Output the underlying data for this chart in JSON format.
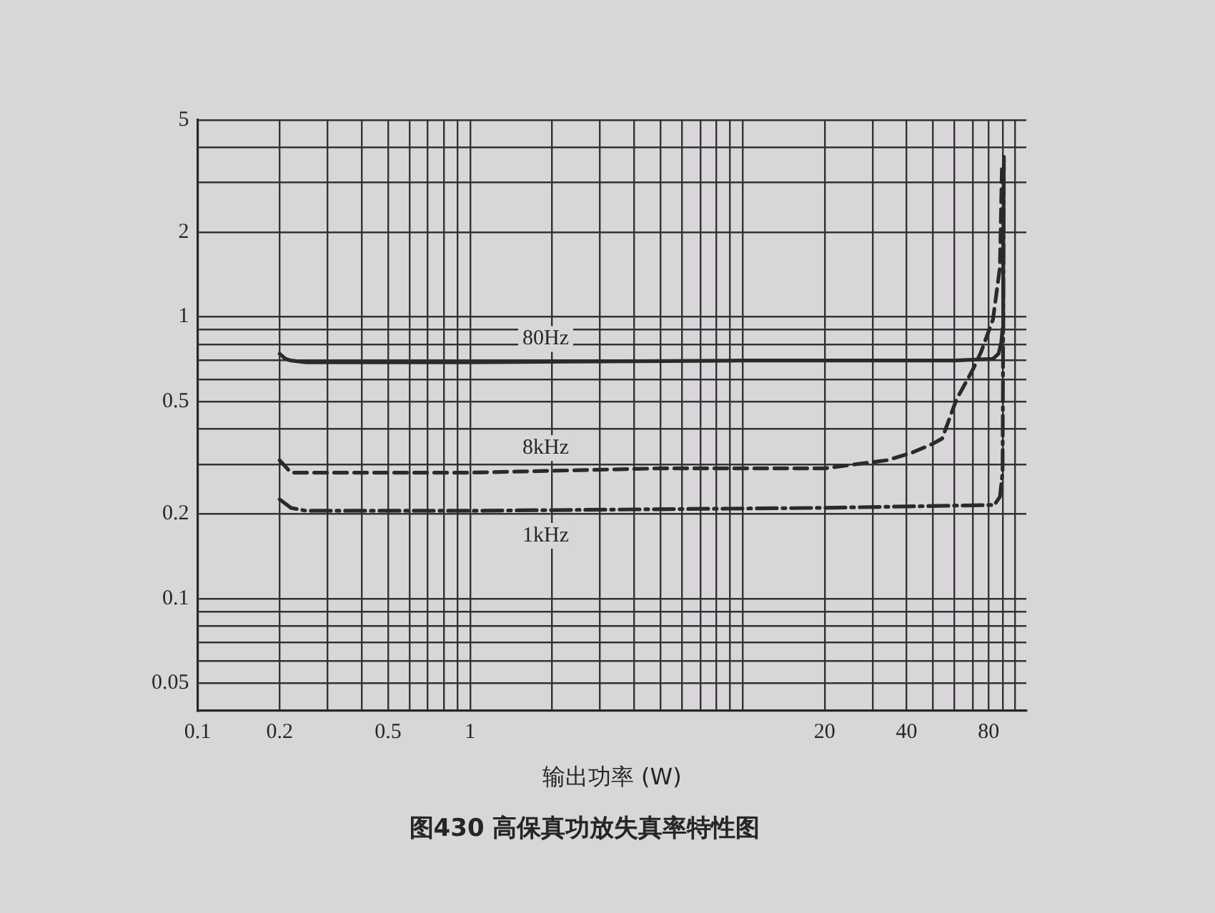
{
  "chart_data": {
    "type": "line",
    "title": "图430 高保真功放失真率特性图",
    "xlabel": "输出功率 (W)",
    "log": "xy",
    "xlim": [
      0.1,
      110
    ],
    "xticks": [
      0.1,
      0.2,
      {
        "value": 0.3,
        "label": null
      },
      {
        "value": 0.4,
        "label": null
      },
      0.5,
      {
        "value": 0.6,
        "label": null
      },
      {
        "value": 0.7,
        "label": null
      },
      {
        "value": 0.8,
        "label": null
      },
      {
        "value": 0.9,
        "label": null
      },
      1,
      {
        "value": 2,
        "label": null
      },
      {
        "value": 3,
        "label": null
      },
      {
        "value": 4,
        "label": null
      },
      {
        "value": 5,
        "label": null
      },
      {
        "value": 6,
        "label": null
      },
      {
        "value": 7,
        "label": null
      },
      {
        "value": 8,
        "label": null
      },
      {
        "value": 9,
        "label": null
      },
      {
        "value": 10,
        "label": null
      },
      20,
      {
        "value": 30,
        "label": null
      },
      40,
      {
        "value": 50,
        "label": null
      },
      {
        "value": 60,
        "label": null
      },
      {
        "value": 70,
        "label": null
      },
      80,
      {
        "value": 90,
        "label": null
      },
      {
        "value": 100,
        "label": null
      }
    ],
    "ylim": [
      0.04,
      5
    ],
    "yticks": [
      0.05,
      {
        "value": 0.06,
        "label": null
      },
      {
        "value": 0.07,
        "label": null
      },
      {
        "value": 0.08,
        "label": null
      },
      {
        "value": 0.09,
        "label": null
      },
      0.1,
      0.2,
      {
        "value": 0.3,
        "label": null
      },
      {
        "value": 0.4,
        "label": null
      },
      0.5,
      {
        "value": 0.6,
        "label": null
      },
      {
        "value": 0.7,
        "label": null
      },
      {
        "value": 0.8,
        "label": null
      },
      {
        "value": 0.9,
        "label": null
      },
      1,
      2,
      {
        "value": 3,
        "label": null
      },
      {
        "value": 4,
        "label": null
      },
      5
    ],
    "grid": true,
    "legend": false,
    "marker": "none",
    "series": [
      {
        "name": "80Hz",
        "color": "#2a2a2a",
        "line_style": "solid",
        "x": [
          0.2,
          0.21,
          0.22,
          0.25,
          1,
          10,
          60,
          83,
          87,
          89,
          90,
          90.5,
          91
        ],
        "values": [
          0.74,
          0.71,
          0.7,
          0.69,
          0.69,
          0.7,
          0.7,
          0.71,
          0.74,
          0.81,
          0.91,
          1.6,
          3.7
        ]
      },
      {
        "name": "8kHz",
        "color": "#2a2a2a",
        "line_style": "dashed",
        "x": [
          0.2,
          0.22,
          0.25,
          1,
          5,
          20,
          34,
          42,
          50,
          54,
          61,
          70,
          75,
          83,
          88,
          89.5
        ],
        "values": [
          0.31,
          0.28,
          0.28,
          0.28,
          0.29,
          0.29,
          0.31,
          0.33,
          0.355,
          0.37,
          0.51,
          0.65,
          0.75,
          0.98,
          1.5,
          3.4
        ]
      },
      {
        "name": "1kHz",
        "color": "#2a2a2a",
        "line_style": "dashdot",
        "x": [
          0.2,
          0.22,
          0.25,
          1,
          20,
          84,
          88,
          90,
          90.5,
          91
        ],
        "values": [
          0.225,
          0.21,
          0.205,
          0.205,
          0.21,
          0.215,
          0.23,
          0.28,
          1,
          3.6
        ]
      }
    ]
  }
}
